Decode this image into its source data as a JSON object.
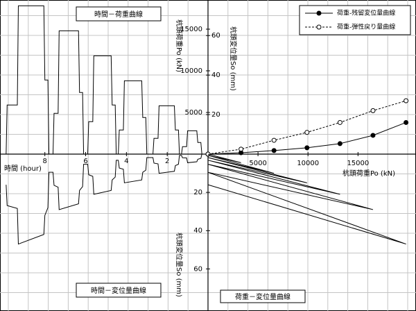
{
  "chart_data": [
    {
      "type": "line",
      "title": "時間－荷重曲線",
      "x_label": "時間 (hour)",
      "y_label": "杭頭荷重Po (kN)",
      "x": [
        0,
        0.3,
        0.35,
        0.5,
        0.55,
        1.0,
        1.05,
        1.25,
        1.3,
        1.4,
        1.45,
        1.6,
        1.65,
        2.4,
        2.45,
        2.65,
        2.7,
        3.0,
        3.05,
        3.2,
        3.25,
        4.1,
        4.15,
        4.35,
        4.4,
        4.5,
        4.55,
        4.7,
        4.75,
        5.6,
        5.65,
        5.85,
        5.9,
        6.1,
        6.15,
        6.3,
        6.35,
        7.3,
        7.35,
        7.55,
        7.6,
        7.8,
        7.85,
        8.0,
        8.05,
        9.3,
        9.35,
        9.85,
        9.9
      ],
      "series": [
        {
          "color": "#000000",
          "values": [
            0,
            0,
            1400,
            1400,
            2800,
            2800,
            900,
            900,
            0,
            0,
            2900,
            2900,
            5800,
            5800,
            1900,
            1900,
            0,
            0,
            4400,
            4400,
            8800,
            8800,
            2900,
            2900,
            0,
            0,
            5900,
            5900,
            11800,
            11800,
            3900,
            3900,
            0,
            0,
            7400,
            7400,
            14800,
            14800,
            4900,
            4900,
            0,
            0,
            8900,
            8900,
            17800,
            17800,
            5900,
            5900,
            0
          ]
        }
      ],
      "xlim": [
        0,
        10.2
      ],
      "xticks": [
        2,
        4,
        6,
        8
      ],
      "ylim": [
        0,
        18500
      ],
      "yticks": [
        5000,
        10000,
        15000
      ]
    },
    {
      "type": "line",
      "title": "時間－変位量曲線",
      "y_label": "杭頭変位量So (mm)",
      "x": [
        0,
        0.3,
        0.35,
        0.5,
        0.55,
        1.0,
        1.05,
        1.25,
        1.3,
        1.4,
        1.45,
        1.6,
        1.65,
        2.4,
        2.45,
        2.65,
        2.7,
        3.0,
        3.05,
        3.2,
        3.25,
        4.1,
        4.15,
        4.35,
        4.4,
        4.5,
        4.55,
        4.7,
        4.75,
        5.6,
        5.65,
        5.85,
        5.9,
        6.1,
        6.15,
        6.3,
        6.35,
        7.3,
        7.35,
        7.55,
        7.6,
        7.8,
        7.85,
        8.0,
        8.05,
        9.3,
        9.35,
        9.85,
        9.9
      ],
      "series": [
        {
          "color": "#000000",
          "values": [
            0,
            0,
            2.2,
            2.7,
            4.0,
            4.5,
            2.0,
            1.9,
            0.7,
            0.7,
            5.3,
            6,
            9,
            10,
            5.1,
            4.7,
            1.8,
            1.8,
            8.4,
            9.5,
            13.5,
            15,
            7.9,
            7.3,
            3.2,
            3.2,
            12,
            13.5,
            19,
            21,
            11.6,
            10.8,
            5.3,
            5.3,
            17,
            19,
            26,
            29,
            17.3,
            16.3,
            9.5,
            9.5,
            28,
            32,
            42,
            47,
            28.4,
            26.9,
            16
          ]
        }
      ],
      "xlim": [
        0,
        10.2
      ],
      "ylim": [
        0,
        82
      ],
      "yticks": [
        20,
        40,
        60
      ]
    },
    {
      "type": "line",
      "x_label": "杭頭荷重Po (kN)",
      "y_label": "杭頭変位量So (mm)",
      "x": [
        0,
        3300,
        6600,
        9900,
        13200,
        16500,
        19800
      ],
      "series": [
        {
          "name": "荷重-残留変位量曲線",
          "color": "#000000",
          "marker": "filled",
          "dash": false,
          "values": [
            0,
            0.7,
            1.8,
            3.2,
            5.3,
            9.5,
            16
          ]
        },
        {
          "name": "荷重-弾性戻り量曲線",
          "color": "#000000",
          "marker": "open",
          "dash": true,
          "values": [
            0,
            2.5,
            7,
            11,
            16,
            22,
            27
          ]
        }
      ],
      "xlim": [
        0,
        20800
      ],
      "xticks": [
        5000,
        10000,
        15000
      ],
      "ylim": [
        0,
        78
      ],
      "yticks": [
        20,
        40,
        60
      ]
    },
    {
      "type": "line",
      "title": "荷重－変位量曲線",
      "x": [
        0,
        3300,
        0,
        6600,
        0,
        9900,
        0,
        13200,
        0,
        16500,
        0,
        19800,
        0
      ],
      "series": [
        {
          "color": "#000000",
          "values": [
            0,
            4.5,
            0.7,
            10,
            1.8,
            15,
            3.2,
            21,
            5.3,
            29,
            9.5,
            47,
            16
          ]
        }
      ],
      "xlim": [
        0,
        20800
      ],
      "ylim": [
        0,
        82
      ]
    }
  ]
}
